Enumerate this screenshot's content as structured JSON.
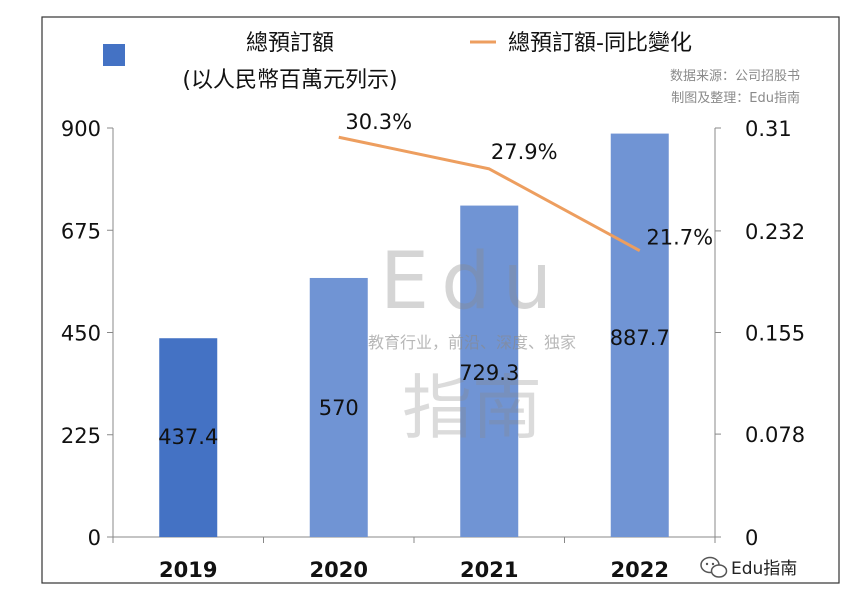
{
  "chart_data": {
    "type": "bar",
    "categories": [
      "2019",
      "2020",
      "2021",
      "2022"
    ],
    "series": [
      {
        "name": "總預訂額 (以人民幣百萬元列示)",
        "values": [
          437.4,
          570,
          729.3,
          887.7
        ],
        "data_labels": [
          "437.4",
          "570",
          "729.3",
          "887.7"
        ]
      }
    ],
    "line_series": [
      {
        "name": "總預訂額-同比變化",
        "x": [
          "2020",
          "2021",
          "2022"
        ],
        "values": [
          0.303,
          0.279,
          0.217
        ],
        "data_labels": [
          "30.3%",
          "27.9%",
          "21.7%"
        ]
      }
    ],
    "y_left_ticks": [
      "0",
      "225",
      "450",
      "675",
      "900"
    ],
    "y_left_range": [
      0,
      900
    ],
    "y_right_ticks": [
      "0",
      "0.078",
      "0.155",
      "0.232",
      "0.31"
    ],
    "y_right_range": [
      0,
      0.31
    ],
    "legend": {
      "bar_line1": "總預訂額",
      "bar_line2": "(以人民幣百萬元列示)",
      "line": "總預訂額-同比變化",
      "placement": "top"
    },
    "grid": false
  },
  "source_note": {
    "line1": "数据来源：公司招股书",
    "line2": "制图及整理：Edu指南"
  },
  "watermark": {
    "latin": "Edu",
    "cn": "指南",
    "slogan": "教育行业，前沿、深度、独家"
  },
  "brand": {
    "icon": "wechat-icon",
    "text": "Edu指南"
  },
  "colors": {
    "bar_first": "#4472c4",
    "bar_rest": "#7094d4",
    "line": "#ed9e5f",
    "frame": "#333333"
  }
}
